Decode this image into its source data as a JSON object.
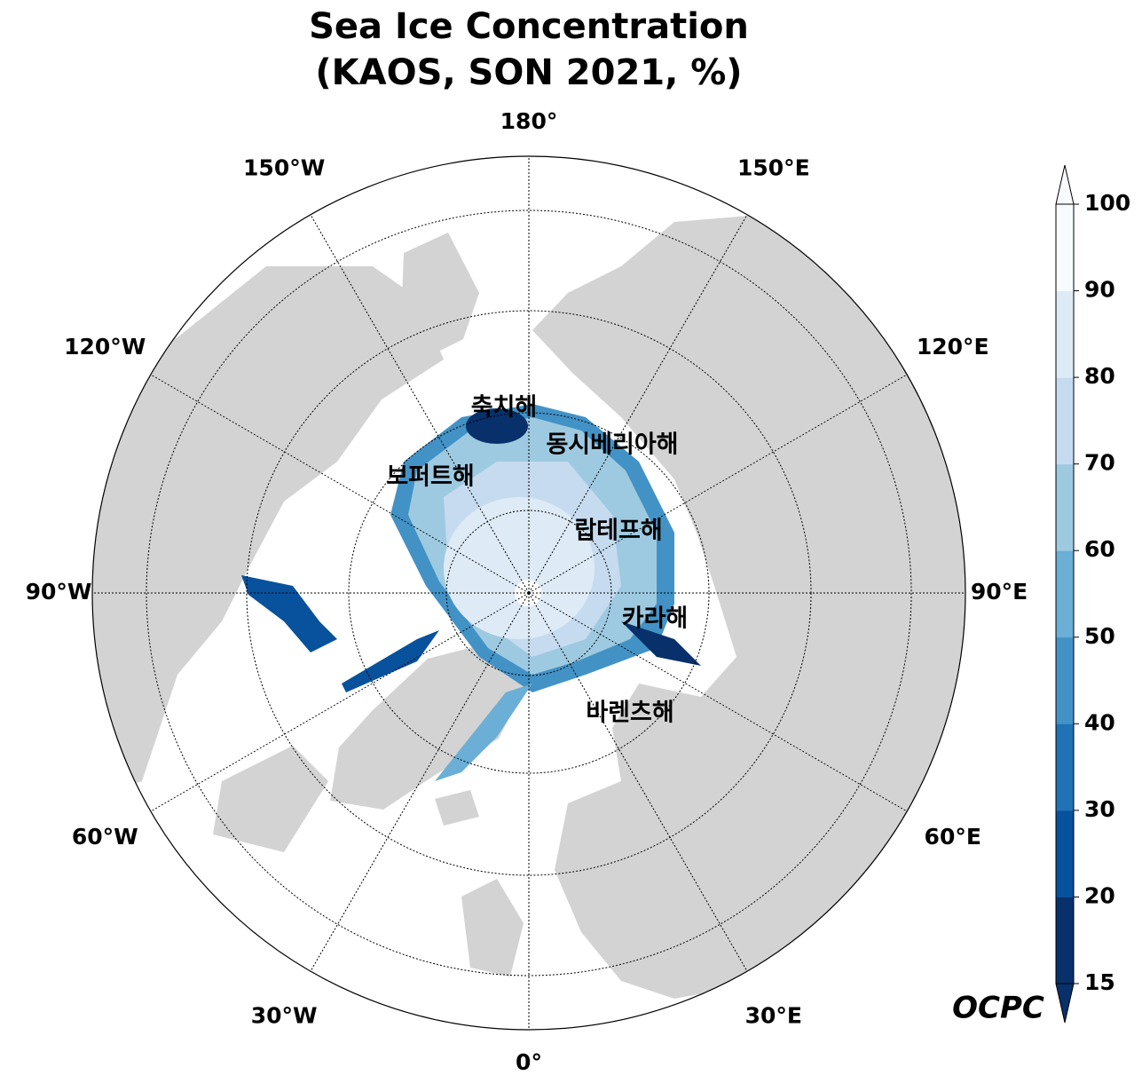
{
  "title": [
    "Sea Ice Concentration",
    "(KAOS, SON 2021, %)"
  ],
  "map": {
    "meridian_labels": [
      "0°",
      "30°E",
      "60°E",
      "90°E",
      "120°E",
      "150°E",
      "180°",
      "150°W",
      "120°W",
      "90°W",
      "60°W",
      "30°W"
    ],
    "sea_labels": [
      "축치해",
      "동시베리아해",
      "보퍼트해",
      "랍테프해",
      "카라해",
      "바렌츠해"
    ]
  },
  "colorbar": {
    "ticks": [
      15,
      20,
      30,
      40,
      50,
      60,
      70,
      80,
      90,
      100
    ],
    "colors": [
      "#08306b",
      "#08519c",
      "#2171b5",
      "#4292c6",
      "#6baed6",
      "#9ecae1",
      "#c6dbef",
      "#deebf7",
      "#f7fbff"
    ]
  },
  "logo": "OCPC"
}
